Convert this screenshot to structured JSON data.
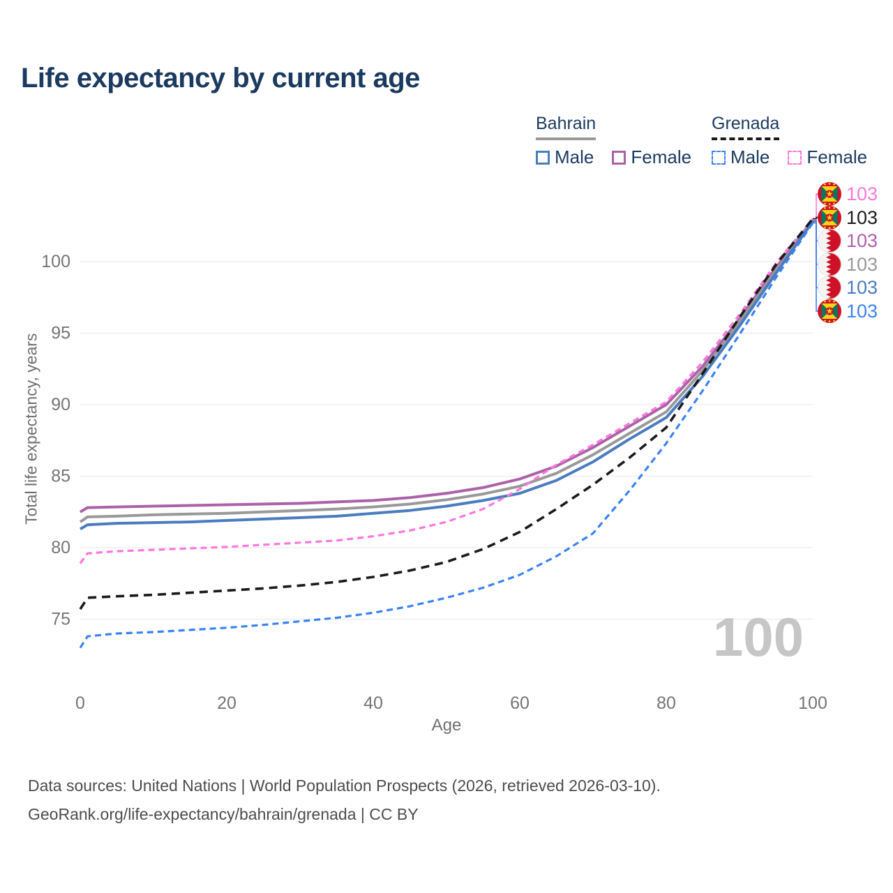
{
  "title": "Life expectancy by current age",
  "legend": {
    "groups": [
      {
        "country": "Bahrain",
        "line_style": "solid",
        "style_color": "#999999",
        "items": [
          {
            "label": "Male",
            "color": "#4a7cc0",
            "dashed": false
          },
          {
            "label": "Female",
            "color": "#ab62a8",
            "dashed": false
          }
        ]
      },
      {
        "country": "Grenada",
        "line_style": "dashed",
        "style_color": "#1a1a1a",
        "items": [
          {
            "label": "Male",
            "color": "#3b82f6",
            "dashed": true
          },
          {
            "label": "Female",
            "color": "#ff77dd",
            "dashed": true
          }
        ]
      }
    ]
  },
  "chart_data": {
    "type": "line",
    "title": "Life expectancy by current age",
    "xlabel": "Age",
    "ylabel": "Total life expectancy, years",
    "xlim": [
      0,
      100
    ],
    "ylim": [
      72,
      104
    ],
    "xticks": [
      0,
      20,
      40,
      60,
      80,
      100
    ],
    "yticks": [
      75,
      80,
      85,
      90,
      95,
      100
    ],
    "grid": "horizontal",
    "x": [
      0,
      1,
      5,
      10,
      15,
      20,
      25,
      30,
      35,
      40,
      45,
      50,
      55,
      60,
      65,
      70,
      75,
      80,
      85,
      90,
      95,
      100
    ],
    "series": [
      {
        "id": "bahrain_female",
        "name": "Bahrain Female",
        "color": "#ab62a8",
        "dash": null,
        "width": 4,
        "values": [
          82.5,
          82.8,
          82.85,
          82.9,
          82.95,
          83.0,
          83.05,
          83.1,
          83.2,
          83.3,
          83.5,
          83.8,
          84.2,
          84.8,
          85.7,
          87.0,
          88.5,
          90.0,
          92.7,
          96.0,
          99.6,
          102.9
        ]
      },
      {
        "id": "bahrain_both",
        "name": "Bahrain (both sexes)",
        "color": "#999999",
        "dash": null,
        "width": 4,
        "values": [
          81.8,
          82.15,
          82.2,
          82.3,
          82.35,
          82.4,
          82.5,
          82.6,
          82.7,
          82.85,
          83.05,
          83.35,
          83.75,
          84.3,
          85.2,
          86.5,
          88.0,
          89.5,
          92.4,
          95.8,
          99.4,
          102.85
        ]
      },
      {
        "id": "bahrain_male",
        "name": "Bahrain Male",
        "color": "#4a7cc0",
        "dash": null,
        "width": 4,
        "values": [
          81.3,
          81.6,
          81.7,
          81.75,
          81.8,
          81.9,
          82.0,
          82.1,
          82.2,
          82.4,
          82.6,
          82.9,
          83.3,
          83.8,
          84.7,
          86.0,
          87.6,
          89.1,
          92.0,
          95.5,
          99.2,
          102.8
        ]
      },
      {
        "id": "grenada_female",
        "name": "Grenada Female",
        "color": "#ff77dd",
        "dash": "9 6",
        "width": 3.2,
        "values": [
          78.9,
          79.6,
          79.75,
          79.85,
          79.95,
          80.05,
          80.2,
          80.35,
          80.5,
          80.8,
          81.2,
          81.8,
          82.7,
          84.1,
          85.8,
          87.2,
          88.7,
          90.2,
          93.0,
          96.3,
          99.9,
          103.0
        ]
      },
      {
        "id": "grenada_both",
        "name": "Grenada (both sexes)",
        "color": "#1a1a1a",
        "dash": "12 8",
        "width": 3.6,
        "values": [
          75.7,
          76.5,
          76.6,
          76.7,
          76.85,
          77.0,
          77.15,
          77.35,
          77.6,
          77.95,
          78.4,
          79.0,
          79.9,
          81.1,
          82.7,
          84.4,
          86.3,
          88.4,
          92.2,
          96.1,
          99.8,
          103.0
        ]
      },
      {
        "id": "grenada_male",
        "name": "Grenada Male",
        "color": "#3b82f6",
        "dash": "9 6",
        "width": 3.2,
        "values": [
          73.0,
          73.8,
          74.0,
          74.1,
          74.25,
          74.4,
          74.6,
          74.85,
          75.1,
          75.45,
          75.9,
          76.5,
          77.2,
          78.1,
          79.4,
          81.0,
          84.0,
          87.3,
          91.0,
          94.9,
          98.9,
          102.7
        ]
      }
    ],
    "end_labels": [
      {
        "flag": "grenada",
        "value": "103",
        "color": "#ff77dd",
        "series": "grenada_female"
      },
      {
        "flag": "grenada",
        "value": "103",
        "color": "#1a1a1a",
        "series": "grenada_both"
      },
      {
        "flag": "bahrain",
        "value": "103",
        "color": "#ab62a8",
        "series": "bahrain_female"
      },
      {
        "flag": "bahrain",
        "value": "103",
        "color": "#999999",
        "series": "bahrain_both"
      },
      {
        "flag": "bahrain",
        "value": "103",
        "color": "#4a7cc0",
        "series": "bahrain_male"
      },
      {
        "flag": "grenada",
        "value": "103",
        "color": "#3b82f6",
        "series": "grenada_male"
      }
    ]
  },
  "watermark": "100",
  "footer": {
    "line1": "Data sources: United Nations | World Population Prospects (2026, retrieved 2026-03-10).",
    "line2": "GeoRank.org/life-expectancy/bahrain/grenada | CC BY"
  }
}
